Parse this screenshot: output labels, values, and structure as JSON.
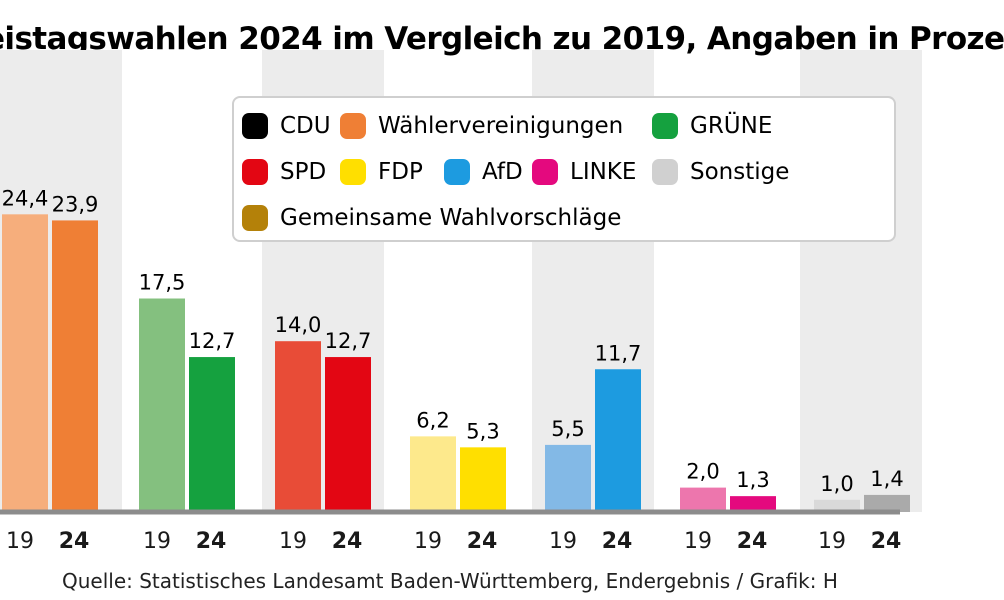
{
  "chart_data": {
    "type": "bar",
    "title": "eistagswahlen 2024 im Vergleich zu 2019, Angaben in Proze",
    "source": "Quelle: Statistisches Landesamt Baden-Württemberg, Endergebnis / Grafik: H",
    "categories": [
      "Wählervereinigungen",
      "GRÜNE",
      "SPD",
      "FDP",
      "AfD",
      "LINKE",
      "Sonstige"
    ],
    "series": [
      {
        "name": "19",
        "values": [
          24.4,
          17.5,
          14.0,
          6.2,
          5.5,
          2.0,
          1.0
        ],
        "labels": [
          "24,4",
          "17,5",
          "14,0",
          "6,2",
          "5,5",
          "2,0",
          "1,0"
        ]
      },
      {
        "name": "24",
        "values": [
          23.9,
          12.7,
          12.7,
          5.3,
          11.7,
          1.3,
          1.4
        ],
        "labels": [
          "23,9",
          "12,7",
          "12,7",
          "5,3",
          "11,7",
          "1,3",
          "1,4"
        ]
      }
    ],
    "colors_19": [
      "#f6ae7c",
      "#84c07f",
      "#e84c37",
      "#fde98c",
      "#83b9e6",
      "#ed76ad",
      "#d9d9d9"
    ],
    "colors_24": [
      "#ef7f35",
      "#15a13f",
      "#e30613",
      "#ffdf00",
      "#1d9be0",
      "#e4097e",
      "#aaaaaa"
    ],
    "ylim": [
      0,
      30
    ],
    "legend": {
      "placement": "top-right",
      "items": [
        {
          "label": "CDU",
          "color": "#000000"
        },
        {
          "label": "Wählervereinigungen",
          "color": "#ef7f35"
        },
        {
          "label": "GRÜNE",
          "color": "#15a13f"
        },
        {
          "label": "SPD",
          "color": "#e30613"
        },
        {
          "label": "FDP",
          "color": "#ffdf00"
        },
        {
          "label": "AfD",
          "color": "#1d9be0"
        },
        {
          "label": "LINKE",
          "color": "#e4097e"
        },
        {
          "label": "Sonstige",
          "color": "#d0d0d0"
        },
        {
          "label": "Gemeinsame Wahlvorschläge",
          "color": "#b48109"
        }
      ]
    }
  }
}
